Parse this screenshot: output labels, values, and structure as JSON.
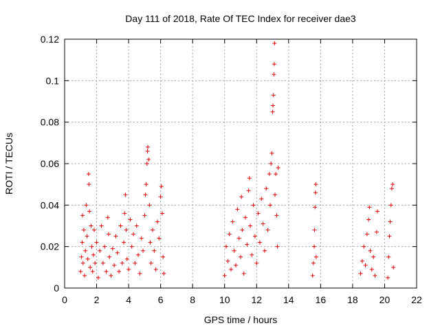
{
  "chart_data": {
    "type": "scatter",
    "title": "Day 111 of 2018, Rate Of TEC Index for receiver dae3",
    "xlabel": "GPS time / hours",
    "ylabel": "ROTI / TECUs",
    "xlim": [
      0,
      22
    ],
    "ylim": [
      0,
      0.12
    ],
    "xticks": [
      0,
      2,
      4,
      6,
      8,
      10,
      12,
      14,
      16,
      18,
      20,
      22
    ],
    "yticks": [
      0,
      0.02,
      0.04,
      0.06,
      0.08,
      0.1,
      0.12
    ],
    "xtick_labels": [
      "0",
      "2",
      "4",
      "6",
      "8",
      "10",
      "12",
      "14",
      "16",
      "18",
      "20",
      "22"
    ],
    "ytick_labels": [
      "0",
      "0.02",
      "0.04",
      "0.06",
      "0.08",
      "0.1",
      "0.12"
    ],
    "grid": true,
    "marker": "+",
    "color": "#e00000",
    "series": [
      {
        "name": "ROTI",
        "points": [
          [
            1.0,
            0.008
          ],
          [
            1.05,
            0.015
          ],
          [
            1.1,
            0.022
          ],
          [
            1.12,
            0.035
          ],
          [
            1.15,
            0.012
          ],
          [
            1.2,
            0.028
          ],
          [
            1.25,
            0.006
          ],
          [
            1.3,
            0.018
          ],
          [
            1.35,
            0.04
          ],
          [
            1.4,
            0.025
          ],
          [
            1.45,
            0.014
          ],
          [
            1.5,
            0.055
          ],
          [
            1.52,
            0.05
          ],
          [
            1.55,
            0.037
          ],
          [
            1.6,
            0.01
          ],
          [
            1.65,
            0.03
          ],
          [
            1.7,
            0.02
          ],
          [
            1.75,
            0.008
          ],
          [
            1.8,
            0.016
          ],
          [
            1.85,
            0.028
          ],
          [
            1.9,
            0.012
          ],
          [
            2.0,
            0.022
          ],
          [
            2.1,
            0.005
          ],
          [
            2.2,
            0.018
          ],
          [
            2.3,
            0.03
          ],
          [
            2.4,
            0.012
          ],
          [
            2.5,
            0.02
          ],
          [
            2.6,
            0.008
          ],
          [
            2.7,
            0.034
          ],
          [
            2.75,
            0.026
          ],
          [
            2.8,
            0.015
          ],
          [
            2.9,
            0.006
          ],
          [
            3.0,
            0.019
          ],
          [
            3.1,
            0.011
          ],
          [
            3.2,
            0.025
          ],
          [
            3.3,
            0.017
          ],
          [
            3.4,
            0.008
          ],
          [
            3.5,
            0.03
          ],
          [
            3.6,
            0.012
          ],
          [
            3.7,
            0.022
          ],
          [
            3.75,
            0.036
          ],
          [
            3.8,
            0.045
          ],
          [
            3.85,
            0.028
          ],
          [
            3.9,
            0.014
          ],
          [
            4.0,
            0.009
          ],
          [
            4.1,
            0.033
          ],
          [
            4.2,
            0.02
          ],
          [
            4.3,
            0.026
          ],
          [
            4.4,
            0.012
          ],
          [
            4.5,
            0.03
          ],
          [
            4.6,
            0.016
          ],
          [
            4.7,
            0.007
          ],
          [
            4.8,
            0.024
          ],
          [
            4.9,
            0.018
          ],
          [
            5.0,
            0.035
          ],
          [
            5.05,
            0.045
          ],
          [
            5.1,
            0.05
          ],
          [
            5.15,
            0.06
          ],
          [
            5.18,
            0.066
          ],
          [
            5.2,
            0.068
          ],
          [
            5.25,
            0.062
          ],
          [
            5.3,
            0.04
          ],
          [
            5.35,
            0.022
          ],
          [
            5.4,
            0.012
          ],
          [
            5.5,
            0.028
          ],
          [
            5.6,
            0.018
          ],
          [
            5.7,
            0.009
          ],
          [
            5.8,
            0.032
          ],
          [
            5.9,
            0.024
          ],
          [
            6.0,
            0.044
          ],
          [
            6.05,
            0.049
          ],
          [
            6.1,
            0.036
          ],
          [
            6.15,
            0.015
          ],
          [
            6.2,
            0.007
          ],
          [
            10.0,
            0.006
          ],
          [
            10.1,
            0.02
          ],
          [
            10.2,
            0.013
          ],
          [
            10.3,
            0.026
          ],
          [
            10.4,
            0.009
          ],
          [
            10.5,
            0.032
          ],
          [
            10.6,
            0.018
          ],
          [
            10.7,
            0.011
          ],
          [
            10.8,
            0.038
          ],
          [
            10.9,
            0.024
          ],
          [
            11.0,
            0.015
          ],
          [
            11.05,
            0.044
          ],
          [
            11.1,
            0.028
          ],
          [
            11.2,
            0.007
          ],
          [
            11.3,
            0.034
          ],
          [
            11.4,
            0.021
          ],
          [
            11.5,
            0.047
          ],
          [
            11.55,
            0.053
          ],
          [
            11.6,
            0.03
          ],
          [
            11.7,
            0.016
          ],
          [
            11.8,
            0.04
          ],
          [
            11.9,
            0.025
          ],
          [
            12.0,
            0.012
          ],
          [
            12.1,
            0.036
          ],
          [
            12.2,
            0.022
          ],
          [
            12.3,
            0.043
          ],
          [
            12.4,
            0.031
          ],
          [
            12.5,
            0.018
          ],
          [
            12.6,
            0.048
          ],
          [
            12.7,
            0.028
          ],
          [
            12.8,
            0.055
          ],
          [
            12.85,
            0.04
          ],
          [
            12.9,
            0.06
          ],
          [
            12.95,
            0.065
          ],
          [
            13.0,
            0.085
          ],
          [
            13.02,
            0.088
          ],
          [
            13.05,
            0.093
          ],
          [
            13.08,
            0.103
          ],
          [
            13.1,
            0.108
          ],
          [
            13.12,
            0.118
          ],
          [
            13.15,
            0.045
          ],
          [
            13.2,
            0.055
          ],
          [
            13.25,
            0.035
          ],
          [
            13.3,
            0.02
          ],
          [
            13.35,
            0.058
          ],
          [
            15.5,
            0.006
          ],
          [
            15.55,
            0.012
          ],
          [
            15.6,
            0.02
          ],
          [
            15.62,
            0.028
          ],
          [
            15.65,
            0.039
          ],
          [
            15.68,
            0.046
          ],
          [
            15.7,
            0.05
          ],
          [
            15.72,
            0.015
          ],
          [
            18.5,
            0.007
          ],
          [
            18.6,
            0.013
          ],
          [
            18.7,
            0.02
          ],
          [
            18.8,
            0.011
          ],
          [
            18.9,
            0.026
          ],
          [
            19.0,
            0.033
          ],
          [
            19.05,
            0.039
          ],
          [
            19.1,
            0.018
          ],
          [
            19.2,
            0.009
          ],
          [
            19.3,
            0.015
          ],
          [
            19.4,
            0.006
          ],
          [
            19.5,
            0.027
          ],
          [
            19.55,
            0.037
          ],
          [
            20.2,
            0.005
          ],
          [
            20.25,
            0.015
          ],
          [
            20.3,
            0.025
          ],
          [
            20.35,
            0.032
          ],
          [
            20.4,
            0.04
          ],
          [
            20.45,
            0.048
          ],
          [
            20.5,
            0.05
          ],
          [
            20.55,
            0.01
          ]
        ]
      }
    ]
  }
}
